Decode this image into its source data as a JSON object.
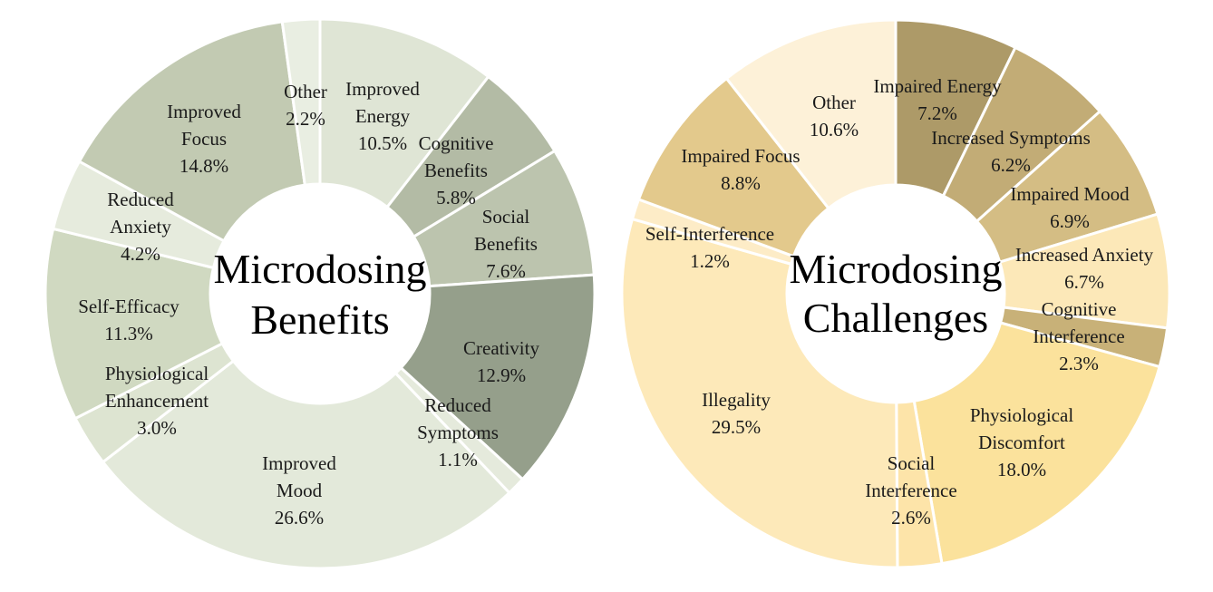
{
  "chart_data": [
    {
      "type": "pie",
      "variant": "donut",
      "title": "Microdosing Benefits",
      "unit": "%",
      "slices": [
        {
          "label": "Improved Energy",
          "value": 10.5,
          "color": "#dfe5d5"
        },
        {
          "label": "Cognitive Benefits",
          "value": 5.8,
          "color": "#b3bba5"
        },
        {
          "label": "Social Benefits",
          "value": 7.6,
          "color": "#bcc4ae"
        },
        {
          "label": "Creativity",
          "value": 12.9,
          "color": "#959f8b"
        },
        {
          "label": "Reduced Symptoms",
          "value": 1.1,
          "color": "#e5eadc"
        },
        {
          "label": "Improved Mood",
          "value": 26.6,
          "color": "#e3e9da"
        },
        {
          "label": "Physiological Enhancement",
          "value": 3.0,
          "color": "#dde4d1"
        },
        {
          "label": "Self-Efficacy",
          "value": 11.3,
          "color": "#d0d9c1"
        },
        {
          "label": "Reduced Anxiety",
          "value": 4.2,
          "color": "#e6ebdd"
        },
        {
          "label": "Improved Focus",
          "value": 14.8,
          "color": "#c2cab2"
        },
        {
          "label": "Other",
          "value": 2.2,
          "color": "#e9eee2"
        }
      ]
    },
    {
      "type": "pie",
      "variant": "donut",
      "title": "Microdosing Challenges",
      "unit": "%",
      "slices": [
        {
          "label": "Impaired Energy",
          "value": 7.2,
          "color": "#ad9a68"
        },
        {
          "label": "Increased Symptoms",
          "value": 6.2,
          "color": "#c2ac76"
        },
        {
          "label": "Impaired Mood",
          "value": 6.9,
          "color": "#d4bd84"
        },
        {
          "label": "Increased Anxiety",
          "value": 6.7,
          "color": "#fce8b8"
        },
        {
          "label": "Cognitive Interference",
          "value": 2.3,
          "color": "#c8b178"
        },
        {
          "label": "Physiological Discomfort",
          "value": 18.0,
          "color": "#fbe29c"
        },
        {
          "label": "Social Interference",
          "value": 2.6,
          "color": "#fde4a9"
        },
        {
          "label": "Illegality",
          "value": 29.5,
          "color": "#fde9b9"
        },
        {
          "label": "Self-Interference",
          "value": 1.2,
          "color": "#fdecc7"
        },
        {
          "label": "Impaired Focus",
          "value": 8.8,
          "color": "#e3c98c"
        },
        {
          "label": "Other",
          "value": 10.6,
          "color": "#fdf1d8"
        }
      ]
    }
  ]
}
